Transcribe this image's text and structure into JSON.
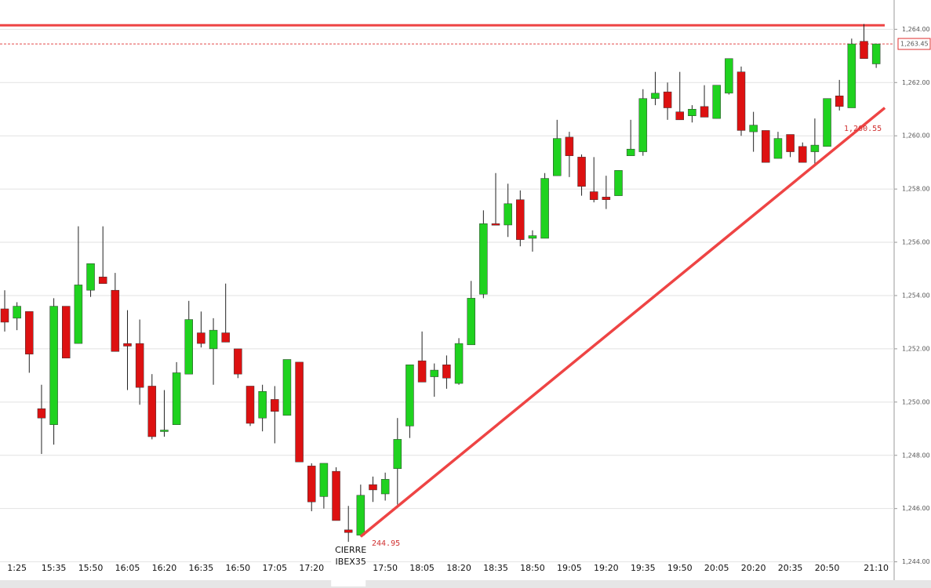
{
  "chart_data": {
    "type": "candlestick",
    "categories": [
      null,
      "1:25",
      null,
      null,
      "15:35",
      null,
      null,
      "15:50",
      null,
      null,
      "16:05",
      null,
      null,
      "16:20",
      null,
      null,
      "16:35",
      null,
      null,
      "16:50",
      null,
      null,
      "17:05",
      null,
      null,
      "17:20",
      null,
      null,
      null,
      null,
      null,
      "17:50",
      null,
      null,
      "18:05",
      null,
      null,
      "18:20",
      null,
      null,
      "18:35",
      null,
      null,
      "18:50",
      null,
      null,
      "19:05",
      null,
      null,
      "19:20",
      null,
      null,
      "19:35",
      null,
      null,
      "19:50",
      null,
      null,
      "20:05",
      null,
      null,
      "20:20",
      null,
      null,
      "20:35",
      null,
      null,
      "20:50",
      null,
      null,
      null,
      "21:10"
    ],
    "open": [
      1253.5,
      1253.15,
      1253.4,
      1249.75,
      1249.15,
      1253.6,
      1252.2,
      1254.2,
      1254.7,
      1254.2,
      1252.2,
      1252.2,
      1250.6,
      1248.9,
      1249.15,
      1251.05,
      1252.6,
      1252.0,
      1252.6,
      1252.0,
      1250.6,
      1249.4,
      1250.1,
      1249.5,
      1251.5,
      1247.6,
      1246.45,
      1247.4,
      1245.2,
      1245.0,
      1246.9,
      1246.55,
      1247.5,
      1249.1,
      1251.55,
      1250.95,
      1251.4,
      1250.7,
      1252.15,
      1254.05,
      1256.7,
      1256.65,
      1257.6,
      1256.15,
      1256.15,
      1258.5,
      1259.95,
      1259.2,
      1257.9,
      1257.7,
      1257.75,
      1259.25,
      1259.4,
      1261.4,
      1261.65,
      1260.9,
      1260.75,
      1261.1,
      1260.65,
      1261.6,
      1262.4,
      1260.15,
      1260.2,
      1259.15,
      1260.05,
      1259.6,
      1259.4,
      1259.6,
      1261.5,
      1261.05,
      1263.55,
      1262.7
    ],
    "high": [
      1254.2,
      1253.75,
      1253.4,
      1250.65,
      1253.9,
      1253.6,
      1256.6,
      1255.2,
      1256.6,
      1254.85,
      1253.45,
      1253.1,
      1251.05,
      1250.45,
      1251.5,
      1253.8,
      1253.4,
      1253.15,
      1254.45,
      1252.0,
      1250.6,
      1250.65,
      1250.6,
      1251.6,
      1251.5,
      1247.7,
      1247.7,
      1247.55,
      1246.1,
      1246.9,
      1247.2,
      1247.35,
      1249.4,
      1251.4,
      1252.65,
      1251.45,
      1251.75,
      1252.4,
      1254.55,
      1257.2,
      1258.6,
      1258.2,
      1257.95,
      1256.45,
      1258.6,
      1260.6,
      1260.15,
      1259.3,
      1259.2,
      1258.5,
      1258.7,
      1260.6,
      1261.75,
      1262.4,
      1262.0,
      1262.4,
      1261.15,
      1261.9,
      1261.9,
      1262.9,
      1262.6,
      1260.9,
      1260.2,
      1260.15,
      1260.05,
      1259.75,
      1260.65,
      1261.4,
      1262.1,
      1263.65,
      1264.2,
      1263.45
    ],
    "low": [
      1252.65,
      1252.7,
      1251.1,
      1248.05,
      1248.4,
      1251.65,
      1252.2,
      1253.95,
      1254.45,
      1251.9,
      1250.45,
      1249.9,
      1248.6,
      1248.7,
      1249.15,
      1251.05,
      1252.05,
      1250.65,
      1252.25,
      1250.9,
      1249.1,
      1248.9,
      1248.45,
      1249.5,
      1247.75,
      1245.9,
      1246.0,
      1245.55,
      1244.75,
      1244.95,
      1246.25,
      1246.3,
      1246.15,
      1248.65,
      1250.75,
      1250.2,
      1250.5,
      1250.65,
      1252.15,
      1253.9,
      1256.65,
      1256.2,
      1255.85,
      1255.65,
      1256.15,
      1258.5,
      1258.45,
      1257.75,
      1257.5,
      1257.25,
      1257.75,
      1259.25,
      1259.25,
      1261.15,
      1260.6,
      1260.6,
      1260.5,
      1260.7,
      1260.65,
      1261.55,
      1260.0,
      1259.4,
      1259.0,
      1259.15,
      1259.2,
      1259.0,
      1258.95,
      1259.6,
      1260.95,
      1261.05,
      1262.9,
      1262.55
    ],
    "close": [
      1253.0,
      1253.6,
      1251.8,
      1249.4,
      1253.6,
      1251.65,
      1254.4,
      1255.2,
      1254.45,
      1251.9,
      1252.1,
      1250.55,
      1248.7,
      1248.95,
      1251.1,
      1253.1,
      1252.2,
      1252.7,
      1252.25,
      1251.05,
      1249.2,
      1250.4,
      1249.65,
      1251.6,
      1247.75,
      1246.25,
      1247.7,
      1245.55,
      1245.1,
      1246.5,
      1246.7,
      1247.1,
      1248.6,
      1251.4,
      1250.75,
      1251.2,
      1250.9,
      1252.2,
      1253.9,
      1256.7,
      1256.65,
      1257.45,
      1256.1,
      1256.25,
      1258.4,
      1259.9,
      1259.25,
      1258.1,
      1257.6,
      1257.6,
      1258.7,
      1259.5,
      1261.4,
      1261.6,
      1261.05,
      1260.6,
      1261.0,
      1260.7,
      1261.9,
      1262.9,
      1260.2,
      1260.4,
      1259.0,
      1259.9,
      1259.4,
      1259.0,
      1259.65,
      1261.4,
      1261.1,
      1263.45,
      1262.9,
      1263.45
    ],
    "up_color": "#1fd21f",
    "down_color": "#dd1111",
    "ylim": [
      1243.9,
      1265.1
    ],
    "yticks": [
      {
        "value": 1244,
        "label": "1,244.00"
      },
      {
        "value": 1246,
        "label": "1,246.00"
      },
      {
        "value": 1248,
        "label": "1,248.00"
      },
      {
        "value": 1250,
        "label": "1,250.00"
      },
      {
        "value": 1252,
        "label": "1,252.00"
      },
      {
        "value": 1254,
        "label": "1,254.00"
      },
      {
        "value": 1256,
        "label": "1,256.00"
      },
      {
        "value": 1258,
        "label": "1,258.00"
      },
      {
        "value": 1260,
        "label": "1,260.00"
      },
      {
        "value": 1262,
        "label": "1,262.00"
      },
      {
        "value": 1264,
        "label": "1,264.00"
      }
    ],
    "grid": true,
    "resistance": {
      "value": 1264.15,
      "color": "#ee4444"
    },
    "last_price": {
      "value": 1263.45,
      "label": "1,263.45",
      "color": "#e03030"
    },
    "trendline": {
      "x": [
        29,
        71.7
      ],
      "y": [
        1244.95,
        1261.05
      ],
      "color": "#ee4444"
    },
    "annotations": [
      "244.95",
      "1,260.55"
    ],
    "close_marker": {
      "index": 28,
      "lines": [
        "CIERRE",
        "IBEX35"
      ]
    }
  }
}
